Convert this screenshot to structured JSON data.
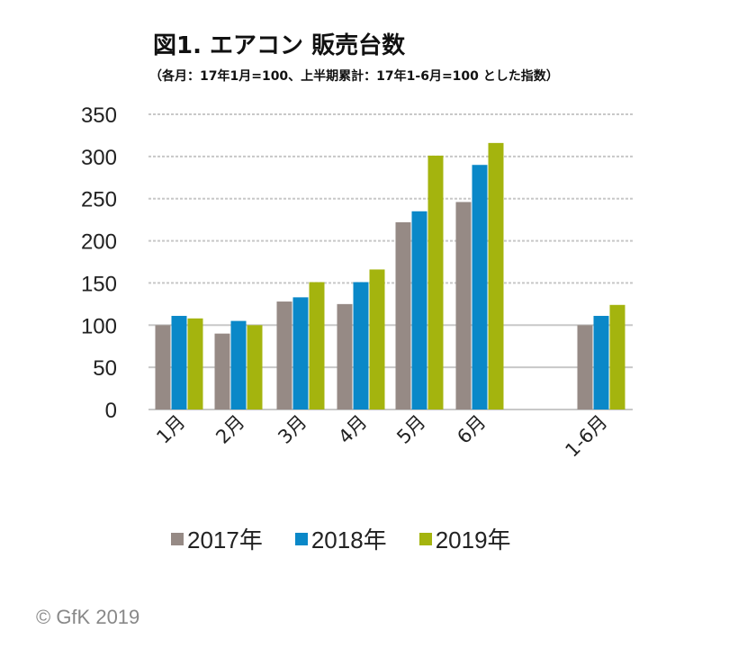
{
  "chart_data": {
    "type": "bar",
    "title": "図1. エアコン 販売台数",
    "subtitle": "（各月：17年1月=100、上半期累計：17年1-6月=100 とした指数）",
    "categories": [
      "1月",
      "2月",
      "3月",
      "4月",
      "5月",
      "6月",
      "1-6月"
    ],
    "series": [
      {
        "name": "2017年",
        "color": "#968a85",
        "values": [
          100,
          90,
          128,
          125,
          222,
          246,
          100
        ]
      },
      {
        "name": "2018年",
        "color": "#0a88c8",
        "values": [
          111,
          105,
          133,
          151,
          235,
          290,
          111
        ]
      },
      {
        "name": "2019年",
        "color": "#a4b40e",
        "values": [
          108,
          100,
          151,
          166,
          301,
          316,
          124
        ]
      }
    ],
    "ylim": [
      0,
      350
    ],
    "yticks": [
      0,
      50,
      100,
      150,
      200,
      250,
      300,
      350
    ],
    "grid": true,
    "legend": "bottom"
  },
  "copyright": "© GfK 2019"
}
